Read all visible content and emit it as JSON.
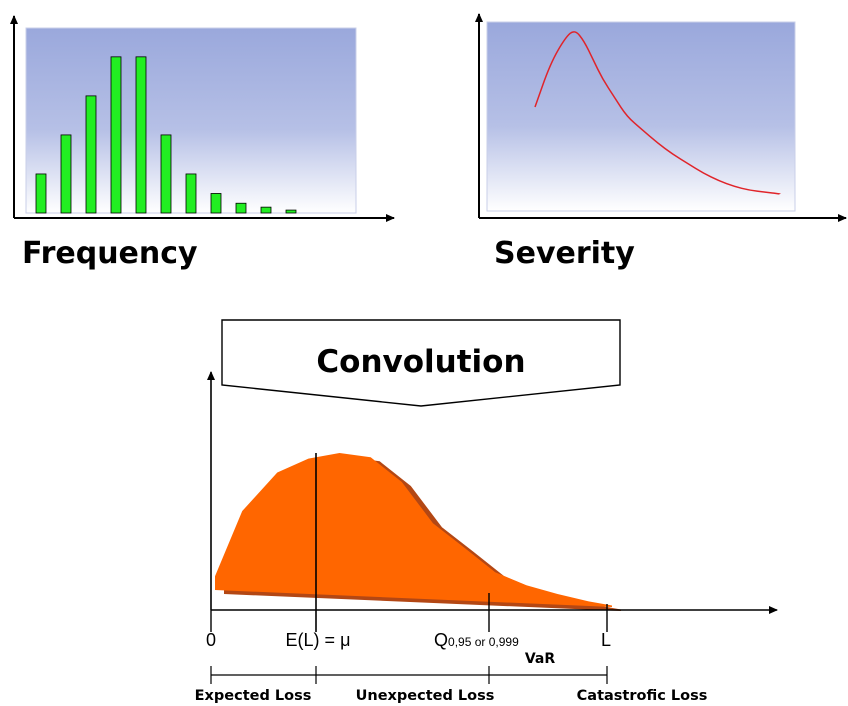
{
  "frequency": {
    "caption": "Frequency",
    "chart_data": {
      "type": "bar",
      "values": [
        2,
        4,
        6,
        8,
        8,
        4,
        2,
        1,
        0.5,
        0.3,
        0.15
      ],
      "ylim": [
        0,
        9
      ],
      "colors": {
        "bar": "#22ee22",
        "bar_edge": "#000000",
        "bg_top": "#9aa8dc",
        "bg_bottom": "#ffffff"
      }
    }
  },
  "severity": {
    "caption": "Severity",
    "chart_data": {
      "type": "line",
      "x": [
        0,
        0.5,
        1,
        1.3,
        1.6,
        1.9,
        2.2,
        2.6,
        3,
        3.5,
        4,
        4.5,
        5,
        5.5,
        6,
        6.5,
        7,
        7.5,
        8
      ],
      "y": [
        0.55,
        0.78,
        0.92,
        0.96,
        0.9,
        0.8,
        0.7,
        0.6,
        0.5,
        0.43,
        0.36,
        0.3,
        0.25,
        0.2,
        0.16,
        0.13,
        0.11,
        0.1,
        0.09
      ],
      "colors": {
        "line": "#e0242a",
        "bg_top": "#9aa8dc",
        "bg_bottom": "#ffffff"
      }
    }
  },
  "convolution": {
    "title": "Convolution",
    "chart_data": {
      "type": "area",
      "x": [
        0,
        0.35,
        0.8,
        1.2,
        1.6,
        2.0,
        2.4,
        2.8,
        3.2,
        3.6,
        4.0,
        4.4,
        4.8,
        5.1
      ],
      "y": [
        0.1,
        0.58,
        0.86,
        0.96,
        1.0,
        0.97,
        0.8,
        0.52,
        0.36,
        0.2,
        0.12,
        0.07,
        0.03,
        0.01
      ],
      "colors": {
        "fill": "#ff6600",
        "shadow": "#b34714"
      }
    },
    "tick_labels": {
      "zero": "0",
      "expected": "E(L) = μ",
      "quantile_main": "Q",
      "quantile_sub": "0,95 or 0,999",
      "limit": "L",
      "var": "VaR"
    },
    "regions": {
      "expected": "Expected Loss",
      "unexpected": "Unexpected Loss",
      "catastrofic": "Catastrofic Loss"
    }
  }
}
